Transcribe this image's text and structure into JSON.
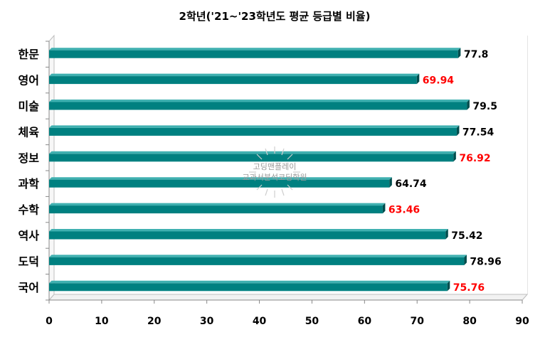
{
  "chart_data": {
    "type": "bar",
    "orientation": "horizontal",
    "title": "2학년('21~'23학년도 평균 등급별 비율)",
    "categories": [
      "한문",
      "영어",
      "미술",
      "체육",
      "정보",
      "과학",
      "수학",
      "역사",
      "도덕",
      "국어"
    ],
    "values": [
      77.8,
      69.94,
      79.5,
      77.54,
      76.92,
      64.74,
      63.46,
      75.42,
      78.96,
      75.76
    ],
    "highlighted": [
      false,
      true,
      false,
      false,
      true,
      false,
      true,
      false,
      false,
      true
    ],
    "xlim": [
      0,
      90
    ],
    "xticks": [
      0,
      10,
      20,
      30,
      40,
      50,
      60,
      70,
      80,
      90
    ],
    "grid": true,
    "bar_color": "#008080",
    "label_color": "#000000",
    "highlight_color": "#ff0000"
  },
  "watermark": {
    "line1": "고딩맨플레이",
    "line2": "교과서분석코딩학원"
  }
}
